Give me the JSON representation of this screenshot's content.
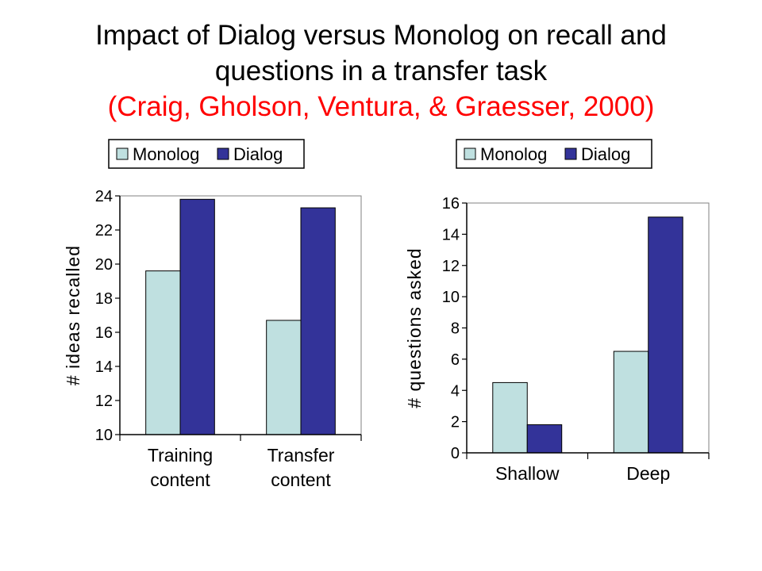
{
  "title": {
    "line1": "Impact of Dialog versus Monolog on recall and",
    "line2": "questions in a transfer task",
    "citation": "(Craig, Gholson, Ventura, & Graesser, 2000)"
  },
  "colors": {
    "monolog": "#bfe0e0",
    "dialog": "#333399",
    "citation": "#ff0000"
  },
  "chart_data": [
    {
      "type": "bar",
      "title": "",
      "xlabel": "",
      "ylabel": "# ideas recalled",
      "categories": [
        [
          "Training",
          "content"
        ],
        [
          "Transfer",
          "content"
        ]
      ],
      "series": [
        {
          "name": "Monolog",
          "values": [
            19.6,
            16.7
          ]
        },
        {
          "name": "Dialog",
          "values": [
            23.8,
            23.3
          ]
        }
      ],
      "ylim": [
        10,
        24
      ],
      "yticks": [
        10,
        12,
        14,
        16,
        18,
        20,
        22,
        24
      ],
      "grid": false,
      "legend": "top"
    },
    {
      "type": "bar",
      "title": "",
      "xlabel": "",
      "ylabel": "# questions asked",
      "categories": [
        [
          "Shallow"
        ],
        [
          "Deep"
        ]
      ],
      "series": [
        {
          "name": "Monolog",
          "values": [
            4.5,
            6.5
          ]
        },
        {
          "name": "Dialog",
          "values": [
            1.8,
            15.1
          ]
        }
      ],
      "ylim": [
        0,
        16
      ],
      "yticks": [
        0,
        2,
        4,
        6,
        8,
        10,
        12,
        14,
        16
      ],
      "grid": false,
      "legend": "top"
    }
  ]
}
